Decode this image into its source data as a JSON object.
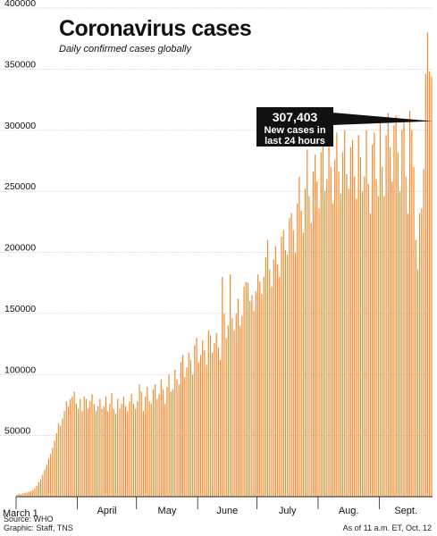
{
  "header": {
    "title": "Coronavirus cases",
    "subtitle": "Daily confirmed cases globally"
  },
  "callout": {
    "value": "307,403",
    "text_line1": "New cases in",
    "text_line2": "last 24 hours"
  },
  "footer": {
    "source": "Source: WHO",
    "graphic": "Graphic: Staff, TNS",
    "asof": "As of 11 a.m. ET, Oct. 12"
  },
  "colors": {
    "bar": "#f08c2e",
    "grid": "#c8c8c8",
    "callout_bg": "#111111",
    "callout_text": "#ffffff"
  },
  "chart_data": {
    "type": "bar",
    "title": "Coronavirus cases",
    "subtitle": "Daily confirmed cases globally",
    "xlabel": "",
    "ylabel": "",
    "ylim": [
      0,
      400000
    ],
    "yticks": [
      0,
      50000,
      100000,
      150000,
      200000,
      250000,
      300000,
      350000,
      400000
    ],
    "ytick_labels": [
      "",
      "50000",
      "100000",
      "150000",
      "200000",
      "250000",
      "300000",
      "350000",
      "400000"
    ],
    "grid": true,
    "x_start_label": "March 1",
    "month_labels": [
      {
        "label": "April",
        "day": 31
      },
      {
        "label": "May",
        "day": 61
      },
      {
        "label": "June",
        "day": 92
      },
      {
        "label": "July",
        "day": 122
      },
      {
        "label": "Aug.",
        "day": 153
      },
      {
        "label": "Sept.",
        "day": 184
      }
    ],
    "values": [
      1500,
      2500,
      2000,
      2800,
      3000,
      3500,
      4000,
      4500,
      5500,
      7000,
      9000,
      12000,
      14000,
      18000,
      22000,
      26000,
      31000,
      35000,
      40000,
      46000,
      52000,
      60000,
      58000,
      64000,
      70000,
      78000,
      74000,
      80000,
      82000,
      86000,
      76000,
      72000,
      80000,
      70000,
      82000,
      80000,
      72000,
      78000,
      84000,
      76000,
      70000,
      74000,
      80000,
      72000,
      74000,
      82000,
      70000,
      76000,
      85000,
      72000,
      68000,
      80000,
      72000,
      76000,
      82000,
      74000,
      70000,
      78000,
      84000,
      76000,
      72000,
      78000,
      92000,
      86000,
      70000,
      82000,
      90000,
      78000,
      76000,
      88000,
      92000,
      80000,
      84000,
      96000,
      88000,
      76000,
      90000,
      100000,
      86000,
      88000,
      104000,
      96000,
      92000,
      110000,
      116000,
      98000,
      106000,
      118000,
      112000,
      100000,
      124000,
      130000,
      110000,
      116000,
      128000,
      120000,
      108000,
      136000,
      132000,
      118000,
      126000,
      134000,
      122000,
      112000,
      180000,
      150000,
      130000,
      140000,
      182000,
      146000,
      136000,
      150000,
      162000,
      140000,
      148000,
      172000,
      176000,
      175000,
      160000,
      165000,
      152000,
      168000,
      182000,
      176000,
      166000,
      180000,
      196000,
      210000,
      186000,
      172000,
      194000,
      205000,
      190000,
      180000,
      213000,
      218000,
      202000,
      198000,
      228000,
      232000,
      218000,
      200000,
      240000,
      262000,
      234000,
      216000,
      252000,
      284000,
      246000,
      224000,
      266000,
      280000,
      258000,
      236000,
      282000,
      290000,
      250000,
      260000,
      294000,
      270000,
      240000,
      276000,
      298000,
      266000,
      248000,
      282000,
      300000,
      264000,
      252000,
      286000,
      292000,
      262000,
      244000,
      296000,
      278000,
      250000,
      262000,
      300000,
      256000,
      232000,
      288000,
      298000,
      260000,
      246000,
      306000,
      270000,
      246000,
      296000,
      314000,
      286000,
      258000,
      304000,
      312000,
      282000,
      250000,
      300000,
      308000,
      262000,
      232000,
      316000,
      300000,
      270000,
      210000,
      186000,
      232000,
      236000,
      268000,
      346000,
      380000,
      348000,
      344000
    ],
    "annotation": {
      "value": 307403,
      "text": "New cases in last 24 hours"
    }
  }
}
